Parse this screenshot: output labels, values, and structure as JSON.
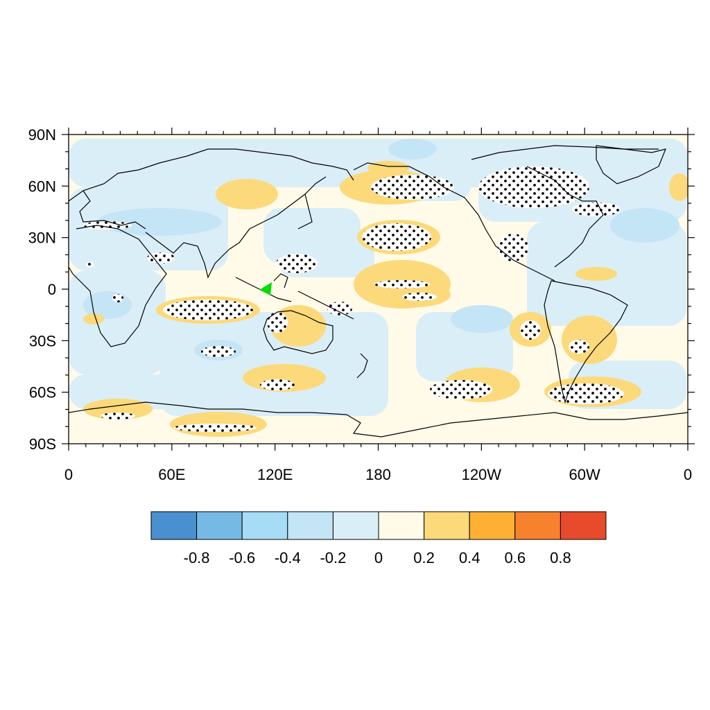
{
  "lat_ticks": [
    "90N",
    "60N",
    "30N",
    "0",
    "30S",
    "60S",
    "90S"
  ],
  "lon_ticks": [
    "0",
    "60E",
    "120E",
    "180",
    "120W",
    "60W",
    "0"
  ],
  "colorbar": {
    "colors": [
      "#4a8fd0",
      "#77b9e5",
      "#a6dcf5",
      "#c4e5f5",
      "#daeef8",
      "#fffbe8",
      "#fcd97a",
      "#fdb034",
      "#f8812d",
      "#e84b2b"
    ],
    "labels": [
      "-0.8",
      "-0.6",
      "-0.4",
      "-0.2",
      "0",
      "0.2",
      "0.4",
      "0.6",
      "0.8"
    ]
  },
  "colors": {
    "ocean_base": "#fffbe8",
    "neg_light": "#daeef8",
    "neg_mid": "#c4e5f5",
    "pos_light": "#fcd97a",
    "stipple": "#000000",
    "highlight": "#00dd00",
    "coast": "#000000"
  },
  "legend": {
    "marker_label": "green triangle marker (Borneo/Sulawesi)"
  }
}
